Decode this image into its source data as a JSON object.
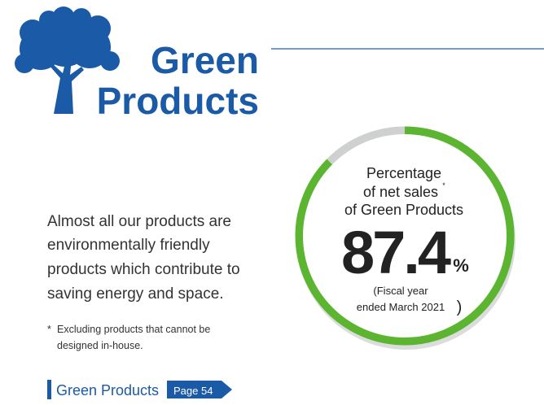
{
  "header": {
    "title_lines": [
      "Green",
      "Products"
    ]
  },
  "body": {
    "text_lines": [
      "Almost all our products are",
      "environmentally friendly",
      "products which contribute to",
      "saving energy and space."
    ],
    "footnote_marker": "*",
    "footnote_lines": [
      "Excluding products that cannot be",
      "designed in-house."
    ]
  },
  "link": {
    "label": "Green Products",
    "page": "Page 54"
  },
  "donut": {
    "caption_lines": [
      "Percentage",
      "of net sales",
      "of Green Products"
    ],
    "caption_marker": "*",
    "value": 87.4,
    "unit": "%",
    "note_lines": [
      "(Fiscal year",
      "ended March 2021"
    ],
    "note_close": ")",
    "lim": [
      0,
      100
    ],
    "color": "#5cb531",
    "rest_color": "#cfd0d0"
  }
}
